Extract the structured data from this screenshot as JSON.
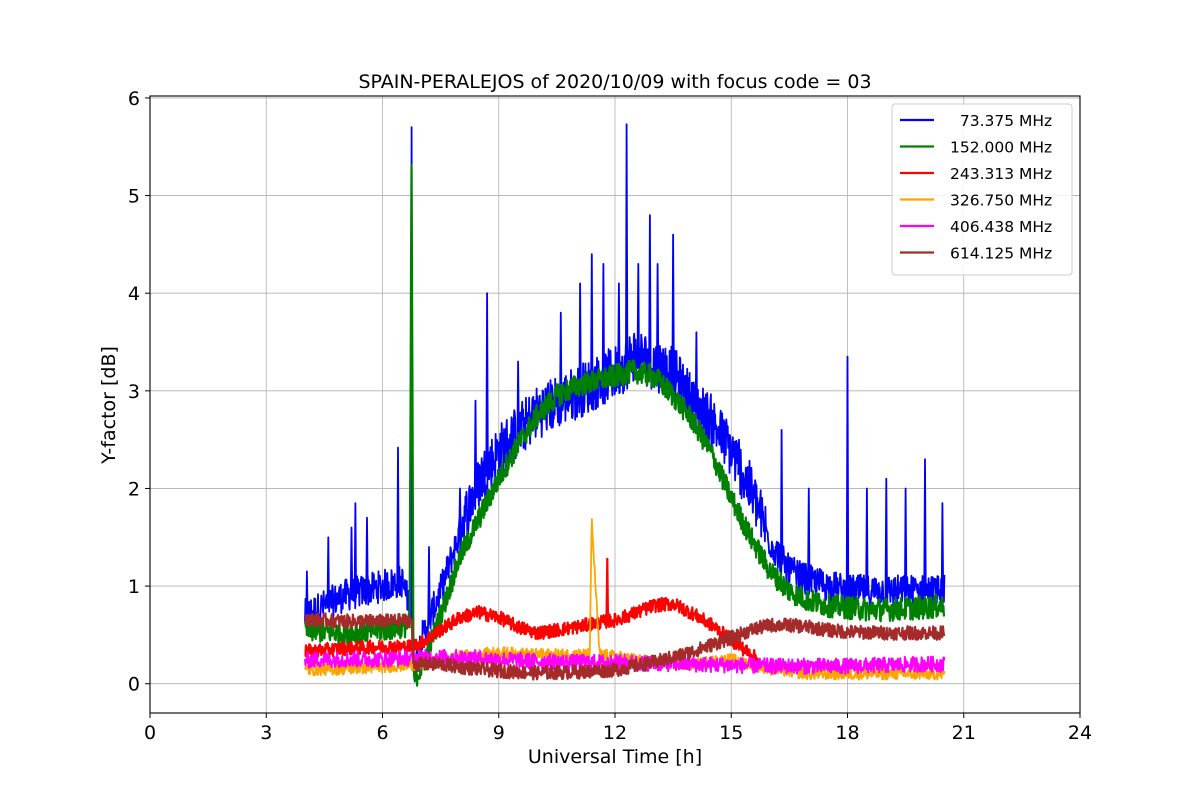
{
  "chart_data": {
    "type": "line",
    "title": "SPAIN-PERALEJOS of 2020/10/09 with focus code = 03",
    "xlabel": "Universal Time [h]",
    "ylabel": "Y-factor [dB]",
    "xlim": [
      0,
      24
    ],
    "ylim": [
      -0.3,
      6.02
    ],
    "xticks": [
      0,
      3,
      6,
      9,
      12,
      15,
      18,
      21,
      24
    ],
    "yticks": [
      0,
      1,
      2,
      3,
      4,
      5,
      6
    ],
    "grid": true,
    "legend_position": "top-right",
    "series": [
      {
        "name": "  73.375 MHz",
        "color": "#0000ff",
        "x": [
          4.0,
          4.5,
          5.0,
          5.5,
          6.0,
          6.5,
          6.75,
          6.8,
          7.0,
          7.5,
          8.0,
          8.5,
          9.0,
          9.5,
          10.0,
          10.5,
          11.0,
          11.5,
          12.0,
          12.3,
          12.5,
          13.0,
          13.5,
          14.0,
          14.5,
          15.0,
          15.5,
          16.0,
          16.5,
          17.0,
          17.5,
          18.0,
          18.5,
          19.0,
          19.5,
          20.0,
          20.5
        ],
        "y": [
          0.65,
          0.75,
          0.85,
          0.9,
          0.95,
          1.0,
          0.7,
          0.05,
          0.4,
          0.9,
          1.5,
          2.0,
          2.3,
          2.5,
          2.7,
          2.8,
          2.9,
          3.0,
          3.1,
          3.2,
          3.3,
          3.2,
          3.1,
          2.8,
          2.6,
          2.3,
          1.9,
          1.4,
          1.1,
          1.0,
          0.95,
          0.9,
          0.9,
          0.9,
          0.9,
          0.9,
          0.9
        ],
        "spikes": [
          [
            4.05,
            1.15
          ],
          [
            4.6,
            1.5
          ],
          [
            5.2,
            1.6
          ],
          [
            5.3,
            1.85
          ],
          [
            5.6,
            1.7
          ],
          [
            6.4,
            2.42
          ],
          [
            6.75,
            5.7
          ],
          [
            7.2,
            1.4
          ],
          [
            8.0,
            2.0
          ],
          [
            8.4,
            2.9
          ],
          [
            8.7,
            4.0
          ],
          [
            9.5,
            3.3
          ],
          [
            10.6,
            3.8
          ],
          [
            11.1,
            4.1
          ],
          [
            11.4,
            4.4
          ],
          [
            11.7,
            4.3
          ],
          [
            12.1,
            4.1
          ],
          [
            12.3,
            5.73
          ],
          [
            12.6,
            4.3
          ],
          [
            12.9,
            4.8
          ],
          [
            13.1,
            4.3
          ],
          [
            13.5,
            4.6
          ],
          [
            14.1,
            3.6
          ],
          [
            15.2,
            2.5
          ],
          [
            16.3,
            2.6
          ],
          [
            17.0,
            2.0
          ],
          [
            18.0,
            3.35
          ],
          [
            18.5,
            2.0
          ],
          [
            19.0,
            2.1
          ],
          [
            19.5,
            2.0
          ],
          [
            20.0,
            2.3
          ],
          [
            20.45,
            1.85
          ]
        ]
      },
      {
        "name": "152.000 MHz",
        "color": "#008000",
        "x": [
          4.0,
          5.0,
          6.0,
          6.7,
          6.75,
          6.8,
          7.0,
          7.5,
          8.0,
          8.5,
          9.0,
          9.5,
          10.0,
          10.5,
          11.0,
          11.5,
          12.0,
          12.5,
          13.0,
          13.5,
          14.0,
          14.5,
          15.0,
          15.5,
          16.0,
          16.5,
          17.0,
          17.5,
          18.0,
          18.5,
          19.0,
          19.5,
          20.0,
          20.5
        ],
        "y": [
          0.55,
          0.52,
          0.55,
          0.6,
          5.5,
          0.05,
          0.15,
          0.7,
          1.3,
          1.7,
          2.1,
          2.45,
          2.75,
          2.95,
          3.05,
          3.1,
          3.15,
          3.2,
          3.15,
          2.95,
          2.7,
          2.35,
          1.9,
          1.5,
          1.15,
          0.95,
          0.85,
          0.8,
          0.78,
          0.76,
          0.76,
          0.77,
          0.78,
          0.8
        ]
      },
      {
        "name": "243.313 MHz",
        "color": "#ff0000",
        "x": [
          4.0,
          5.0,
          6.0,
          6.75,
          7.0,
          7.5,
          8.0,
          8.5,
          9.0,
          9.5,
          10.0,
          10.5,
          11.0,
          11.5,
          11.8,
          12.0,
          12.5,
          13.0,
          13.5,
          14.0,
          14.5,
          15.0,
          15.5,
          15.7
        ],
        "y": [
          0.33,
          0.36,
          0.38,
          0.38,
          0.42,
          0.55,
          0.68,
          0.73,
          0.68,
          0.58,
          0.52,
          0.55,
          0.58,
          0.62,
          0.64,
          0.65,
          0.72,
          0.8,
          0.82,
          0.72,
          0.6,
          0.45,
          0.3,
          0.25
        ],
        "spikes": [
          [
            11.8,
            1.28
          ]
        ]
      },
      {
        "name": "326.750 MHz",
        "color": "#ffa500",
        "x": [
          4.0,
          5.0,
          6.0,
          7.0,
          8.0,
          9.0,
          10.0,
          11.0,
          11.35,
          11.4,
          11.6,
          12.0,
          13.0,
          14.0,
          15.0,
          16.0,
          17.0,
          18.0,
          19.0,
          20.0,
          20.5
        ],
        "y": [
          0.14,
          0.15,
          0.17,
          0.2,
          0.28,
          0.32,
          0.3,
          0.3,
          0.3,
          1.67,
          0.3,
          0.28,
          0.22,
          0.2,
          0.25,
          0.15,
          0.1,
          0.1,
          0.1,
          0.1,
          0.1
        ]
      },
      {
        "name": "406.438 MHz",
        "color": "#ff00ff",
        "x": [
          4.0,
          5.0,
          6.0,
          7.0,
          8.0,
          9.0,
          10.0,
          11.0,
          12.0,
          13.0,
          14.0,
          15.0,
          16.0,
          17.0,
          18.0,
          19.0,
          20.0,
          20.5
        ],
        "y": [
          0.24,
          0.25,
          0.25,
          0.27,
          0.27,
          0.25,
          0.23,
          0.22,
          0.22,
          0.21,
          0.2,
          0.19,
          0.18,
          0.18,
          0.18,
          0.19,
          0.2,
          0.2
        ]
      },
      {
        "name": "614.125 MHz",
        "color": "#a52a2a",
        "x": [
          4.0,
          5.0,
          6.0,
          6.75,
          6.8,
          7.5,
          8.0,
          9.0,
          10.0,
          11.0,
          12.0,
          12.5,
          13.0,
          13.5,
          14.0,
          14.5,
          15.0,
          15.5,
          16.0,
          16.5,
          17.0,
          17.5,
          18.0,
          19.0,
          20.0,
          20.5
        ],
        "y": [
          0.66,
          0.64,
          0.64,
          0.65,
          0.2,
          0.2,
          0.17,
          0.13,
          0.11,
          0.12,
          0.14,
          0.18,
          0.22,
          0.27,
          0.33,
          0.4,
          0.47,
          0.55,
          0.6,
          0.6,
          0.58,
          0.55,
          0.53,
          0.52,
          0.52,
          0.52
        ]
      }
    ]
  }
}
